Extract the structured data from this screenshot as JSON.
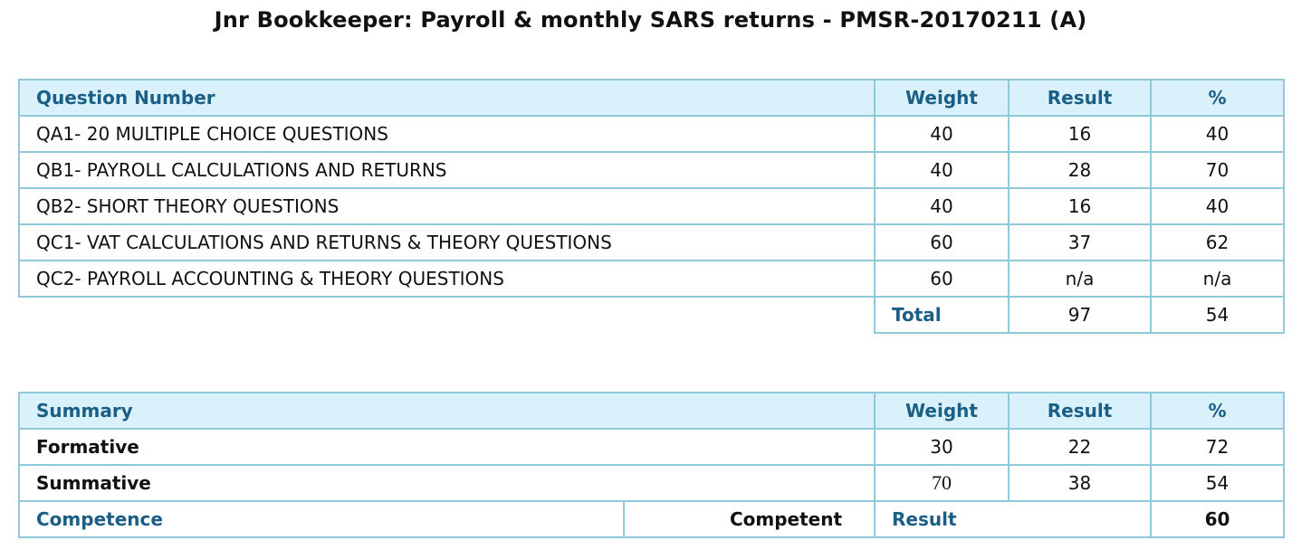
{
  "title": "Jnr Bookkeeper: Payroll & monthly SARS returns - PMSR-20170211 (A)",
  "questions_table": {
    "headers": {
      "question": "Question Number",
      "weight": "Weight",
      "result": "Result",
      "percent": "%"
    },
    "rows": [
      {
        "question": "QA1- 20 MULTIPLE CHOICE QUESTIONS",
        "weight": "40",
        "result": "16",
        "percent": "40"
      },
      {
        "question": "QB1- PAYROLL CALCULATIONS AND RETURNS",
        "weight": "40",
        "result": "28",
        "percent": "70"
      },
      {
        "question": "QB2- SHORT THEORY QUESTIONS",
        "weight": "40",
        "result": "16",
        "percent": "40"
      },
      {
        "question": "QC1- VAT CALCULATIONS AND RETURNS & THEORY QUESTIONS",
        "weight": "60",
        "result": "37",
        "percent": "62"
      },
      {
        "question": "QC2- PAYROLL ACCOUNTING & THEORY QUESTIONS",
        "weight": "60",
        "result": "n/a",
        "percent": "n/a"
      }
    ],
    "total": {
      "label": "Total",
      "result": "97",
      "percent": "54"
    }
  },
  "summary_table": {
    "headers": {
      "summary": "Summary",
      "weight": "Weight",
      "result": "Result",
      "percent": "%"
    },
    "rows": [
      {
        "label": "Formative",
        "weight": "30",
        "result": "22",
        "percent": "72"
      },
      {
        "label": "Summative",
        "weight": "70",
        "result": "38",
        "percent": "54"
      }
    ],
    "competence": {
      "label": "Competence",
      "value": "Competent",
      "result_label": "Result",
      "result_value": "60"
    }
  },
  "colors": {
    "header_bg": "#d9f1fb",
    "header_text": "#1b5f86",
    "border": "#8fc9da"
  }
}
